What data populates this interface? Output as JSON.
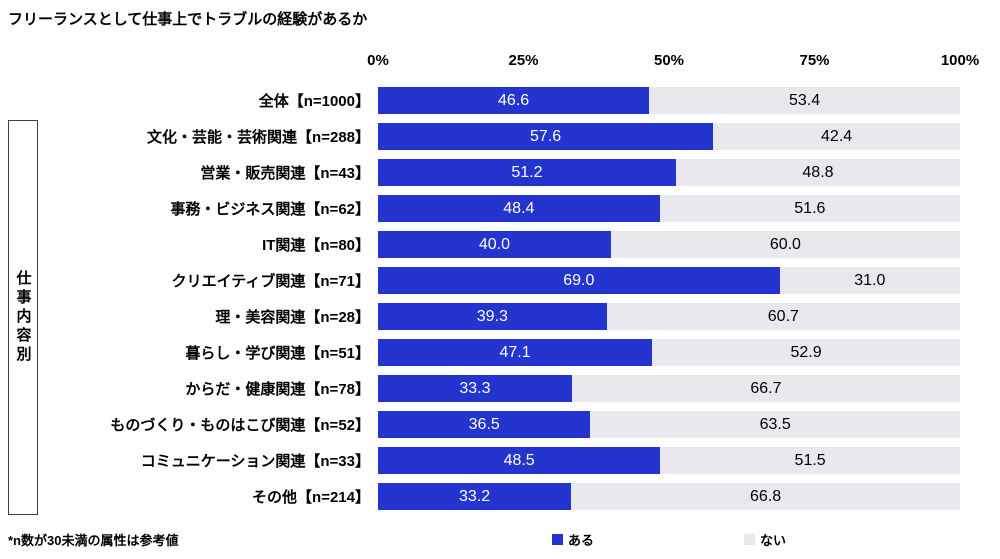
{
  "title": "フリーランスとして仕事上でトラブルの経験があるか",
  "footnote": "*n数が30未満の属性は参考値",
  "group_label": "仕事内容別",
  "axis": {
    "ticks": [
      "0%",
      "25%",
      "50%",
      "75%",
      "100%"
    ]
  },
  "legend": [
    {
      "label": "ある",
      "color": "#2434cf"
    },
    {
      "label": "ない",
      "color": "#e9e9ed"
    }
  ],
  "chart_data": {
    "type": "bar",
    "orientation": "horizontal",
    "stacked": true,
    "title": "フリーランスとして仕事上でトラブルの経験があるか",
    "xlabel": "",
    "ylabel": "",
    "xlim": [
      0,
      100
    ],
    "x_ticks_percent": [
      0,
      25,
      50,
      75,
      100
    ],
    "group_label": "仕事内容別",
    "group_rows_from": 1,
    "group_rows_to": 11,
    "categories": [
      "全体【n=1000】",
      "文化・芸能・芸術関連【n=288】",
      "営業・販売関連【n=43】",
      "事務・ビジネス関連【n=62】",
      "IT関連【n=80】",
      "クリエイティブ関連【n=71】",
      "理・美容関連【n=28】",
      "暮らし・学び関連【n=51】",
      "からだ・健康関連【n=78】",
      "ものづくり・ものはこび関連【n=52】",
      "コミュニケーション関連【n=33】",
      "その他【n=214】"
    ],
    "series": [
      {
        "name": "ある",
        "color": "#2434cf",
        "values": [
          46.6,
          57.6,
          51.2,
          48.4,
          40.0,
          69.0,
          39.3,
          47.1,
          33.3,
          36.5,
          48.5,
          33.2
        ]
      },
      {
        "name": "ない",
        "color": "#e9e9ed",
        "values": [
          53.4,
          42.4,
          48.8,
          51.6,
          60.0,
          31.0,
          60.7,
          52.9,
          66.7,
          63.5,
          51.5,
          66.8
        ]
      }
    ]
  }
}
